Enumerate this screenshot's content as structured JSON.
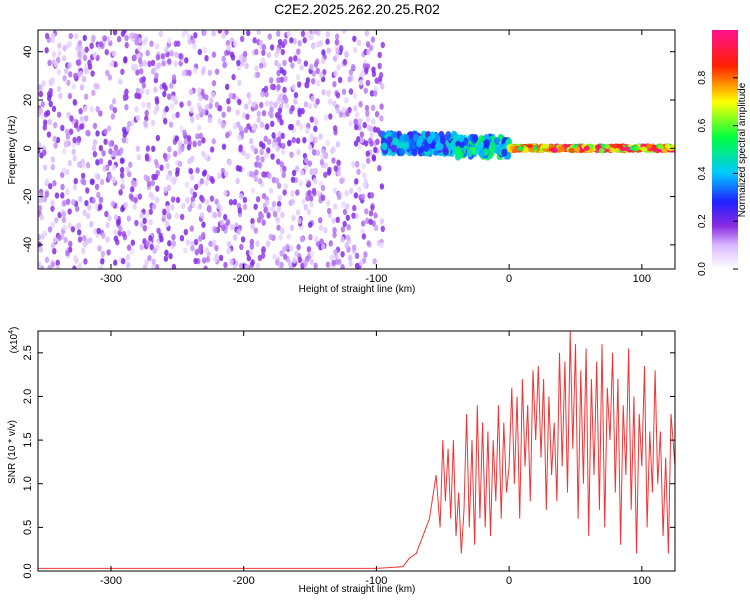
{
  "title": "C2E2.2025.262.20.25.R02",
  "colors": {
    "snr_line": "#ef3535",
    "axis": "#000000"
  },
  "chart_data": [
    {
      "type": "heatmap",
      "name": "spectrogram",
      "title": "C2E2.2025.262.20.25.R02",
      "xlabel": "Height of straight line (km)",
      "ylabel": "Frequency (Hz)",
      "xlim": [
        -355,
        125
      ],
      "ylim": [
        -50,
        49
      ],
      "xticks": [
        -300,
        -200,
        -100,
        0,
        100
      ],
      "xtick_labels": [
        "-300",
        "-200",
        "-100",
        "0",
        "100"
      ],
      "yticks": [
        -40,
        -20,
        0,
        20,
        40
      ],
      "ytick_labels": [
        "-40",
        "-20",
        "0",
        "20",
        "40"
      ],
      "grid": false,
      "colorbar": {
        "label": "Normalized spectral amplitude",
        "range": [
          0,
          1
        ],
        "ticks": [
          0.0,
          0.2,
          0.4,
          0.6,
          0.8
        ],
        "tick_labels": [
          "0.0",
          "0.2",
          "0.4",
          "0.6",
          "0.8"
        ],
        "colormap": "white-purple-blue-cyan-green-yellow-red-magenta",
        "placement": "right"
      },
      "regions": [
        {
          "x": [
            -355,
            -95
          ],
          "description_value": "broadband noise, amplitude ~0.1",
          "amplitude": 0.12
        },
        {
          "x": [
            -95,
            -40
          ],
          "center_freq": 2,
          "amplitude": 0.4
        },
        {
          "x": [
            -40,
            0
          ],
          "center_freq": 0.5,
          "amplitude": 0.5
        },
        {
          "x": [
            0,
            125
          ],
          "center_freq": 0,
          "amplitude": 0.9
        }
      ]
    },
    {
      "type": "line",
      "name": "snr",
      "xlabel": "Height of straight line (km)",
      "ylabel": "SNR (10 * v/v)",
      "scale_label": "(x10",
      "scale_exp": "4",
      "scale_close": ")",
      "xlim": [
        -355,
        125
      ],
      "ylim": [
        0,
        2.75
      ],
      "xticks": [
        -300,
        -200,
        -100,
        0,
        100
      ],
      "xtick_labels": [
        "-300",
        "-200",
        "-100",
        "0",
        "100"
      ],
      "yticks": [
        0.0,
        0.5,
        1.0,
        1.5,
        2.0,
        2.5
      ],
      "ytick_labels": [
        "0.0",
        "0.5",
        "1.0",
        "1.5",
        "2.0",
        "2.5"
      ],
      "grid": false,
      "series": [
        {
          "x": [
            -355,
            -300,
            -200,
            -100,
            -80,
            -75,
            -70,
            -65,
            -60,
            -58,
            -55,
            -52,
            -50,
            -48,
            -46,
            -44,
            -42,
            -40,
            -38,
            -36,
            -34,
            -32,
            -30,
            -28,
            -26,
            -24,
            -22,
            -20,
            -18,
            -16,
            -14,
            -12,
            -10,
            -8,
            -6,
            -4,
            -2,
            0,
            2,
            4,
            6,
            8,
            10,
            12,
            14,
            16,
            18,
            20,
            22,
            24,
            26,
            28,
            30,
            32,
            34,
            36,
            38,
            40,
            42,
            44,
            46,
            48,
            50,
            52,
            54,
            56,
            58,
            60,
            62,
            64,
            66,
            68,
            70,
            72,
            74,
            76,
            78,
            80,
            82,
            84,
            86,
            88,
            90,
            92,
            94,
            96,
            98,
            100,
            102,
            104,
            106,
            108,
            110,
            112,
            114,
            116,
            118,
            120,
            122,
            125
          ],
          "y": [
            0.03,
            0.03,
            0.03,
            0.03,
            0.05,
            0.15,
            0.2,
            0.4,
            0.6,
            0.8,
            1.1,
            0.5,
            1.5,
            0.8,
            1.4,
            0.6,
            1.5,
            0.4,
            0.9,
            0.2,
            0.7,
            1.8,
            0.5,
            1.5,
            0.3,
            1.9,
            0.6,
            1.7,
            0.5,
            1.6,
            0.4,
            1.5,
            0.8,
            1.9,
            0.6,
            1.7,
            0.9,
            1.2,
            2.1,
            1.0,
            2.0,
            0.6,
            2.2,
            1.2,
            1.9,
            0.8,
            2.3,
            1.5,
            2.35,
            1.3,
            2.2,
            0.7,
            2.0,
            1.1,
            1.7,
            0.8,
            2.5,
            1.2,
            2.4,
            0.9,
            2.75,
            1.4,
            2.6,
            0.6,
            2.3,
            1.0,
            2.55,
            0.4,
            2.2,
            1.1,
            2.4,
            0.7,
            2.6,
            0.5,
            2.1,
            1.5,
            2.5,
            0.9,
            2.2,
            0.3,
            1.9,
            1.1,
            2.55,
            0.7,
            2.0,
            0.2,
            1.8,
            1.2,
            2.35,
            0.5,
            1.6,
            0.9,
            2.3,
            1.0,
            1.6,
            0.4,
            1.3,
            0.2,
            1.8,
            1.2
          ]
        }
      ]
    }
  ]
}
